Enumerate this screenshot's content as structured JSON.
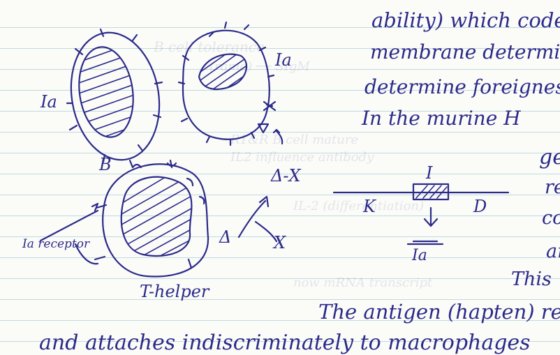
{
  "text_lines": [
    "ability) which code",
    "membrane determine",
    "determine foreignes",
    "In the murine H",
    "ge",
    "re",
    "co",
    "ant",
    "This",
    "The antigen (hapten) re",
    "and attaches indiscriminately to macrophages"
  ],
  "diagram_labels": {
    "ia_right": "Ia",
    "ia_left": "Ia",
    "b_cell": "B",
    "t_helper": "T-helper",
    "ia_receptor": "Ia receptor",
    "delta_x": "Δ-X",
    "delta": "Δ",
    "x_small": "X",
    "x_upper": "X",
    "gene_i": "I",
    "gene_k": "K",
    "gene_d": "D",
    "gene_ia": "Ia"
  }
}
